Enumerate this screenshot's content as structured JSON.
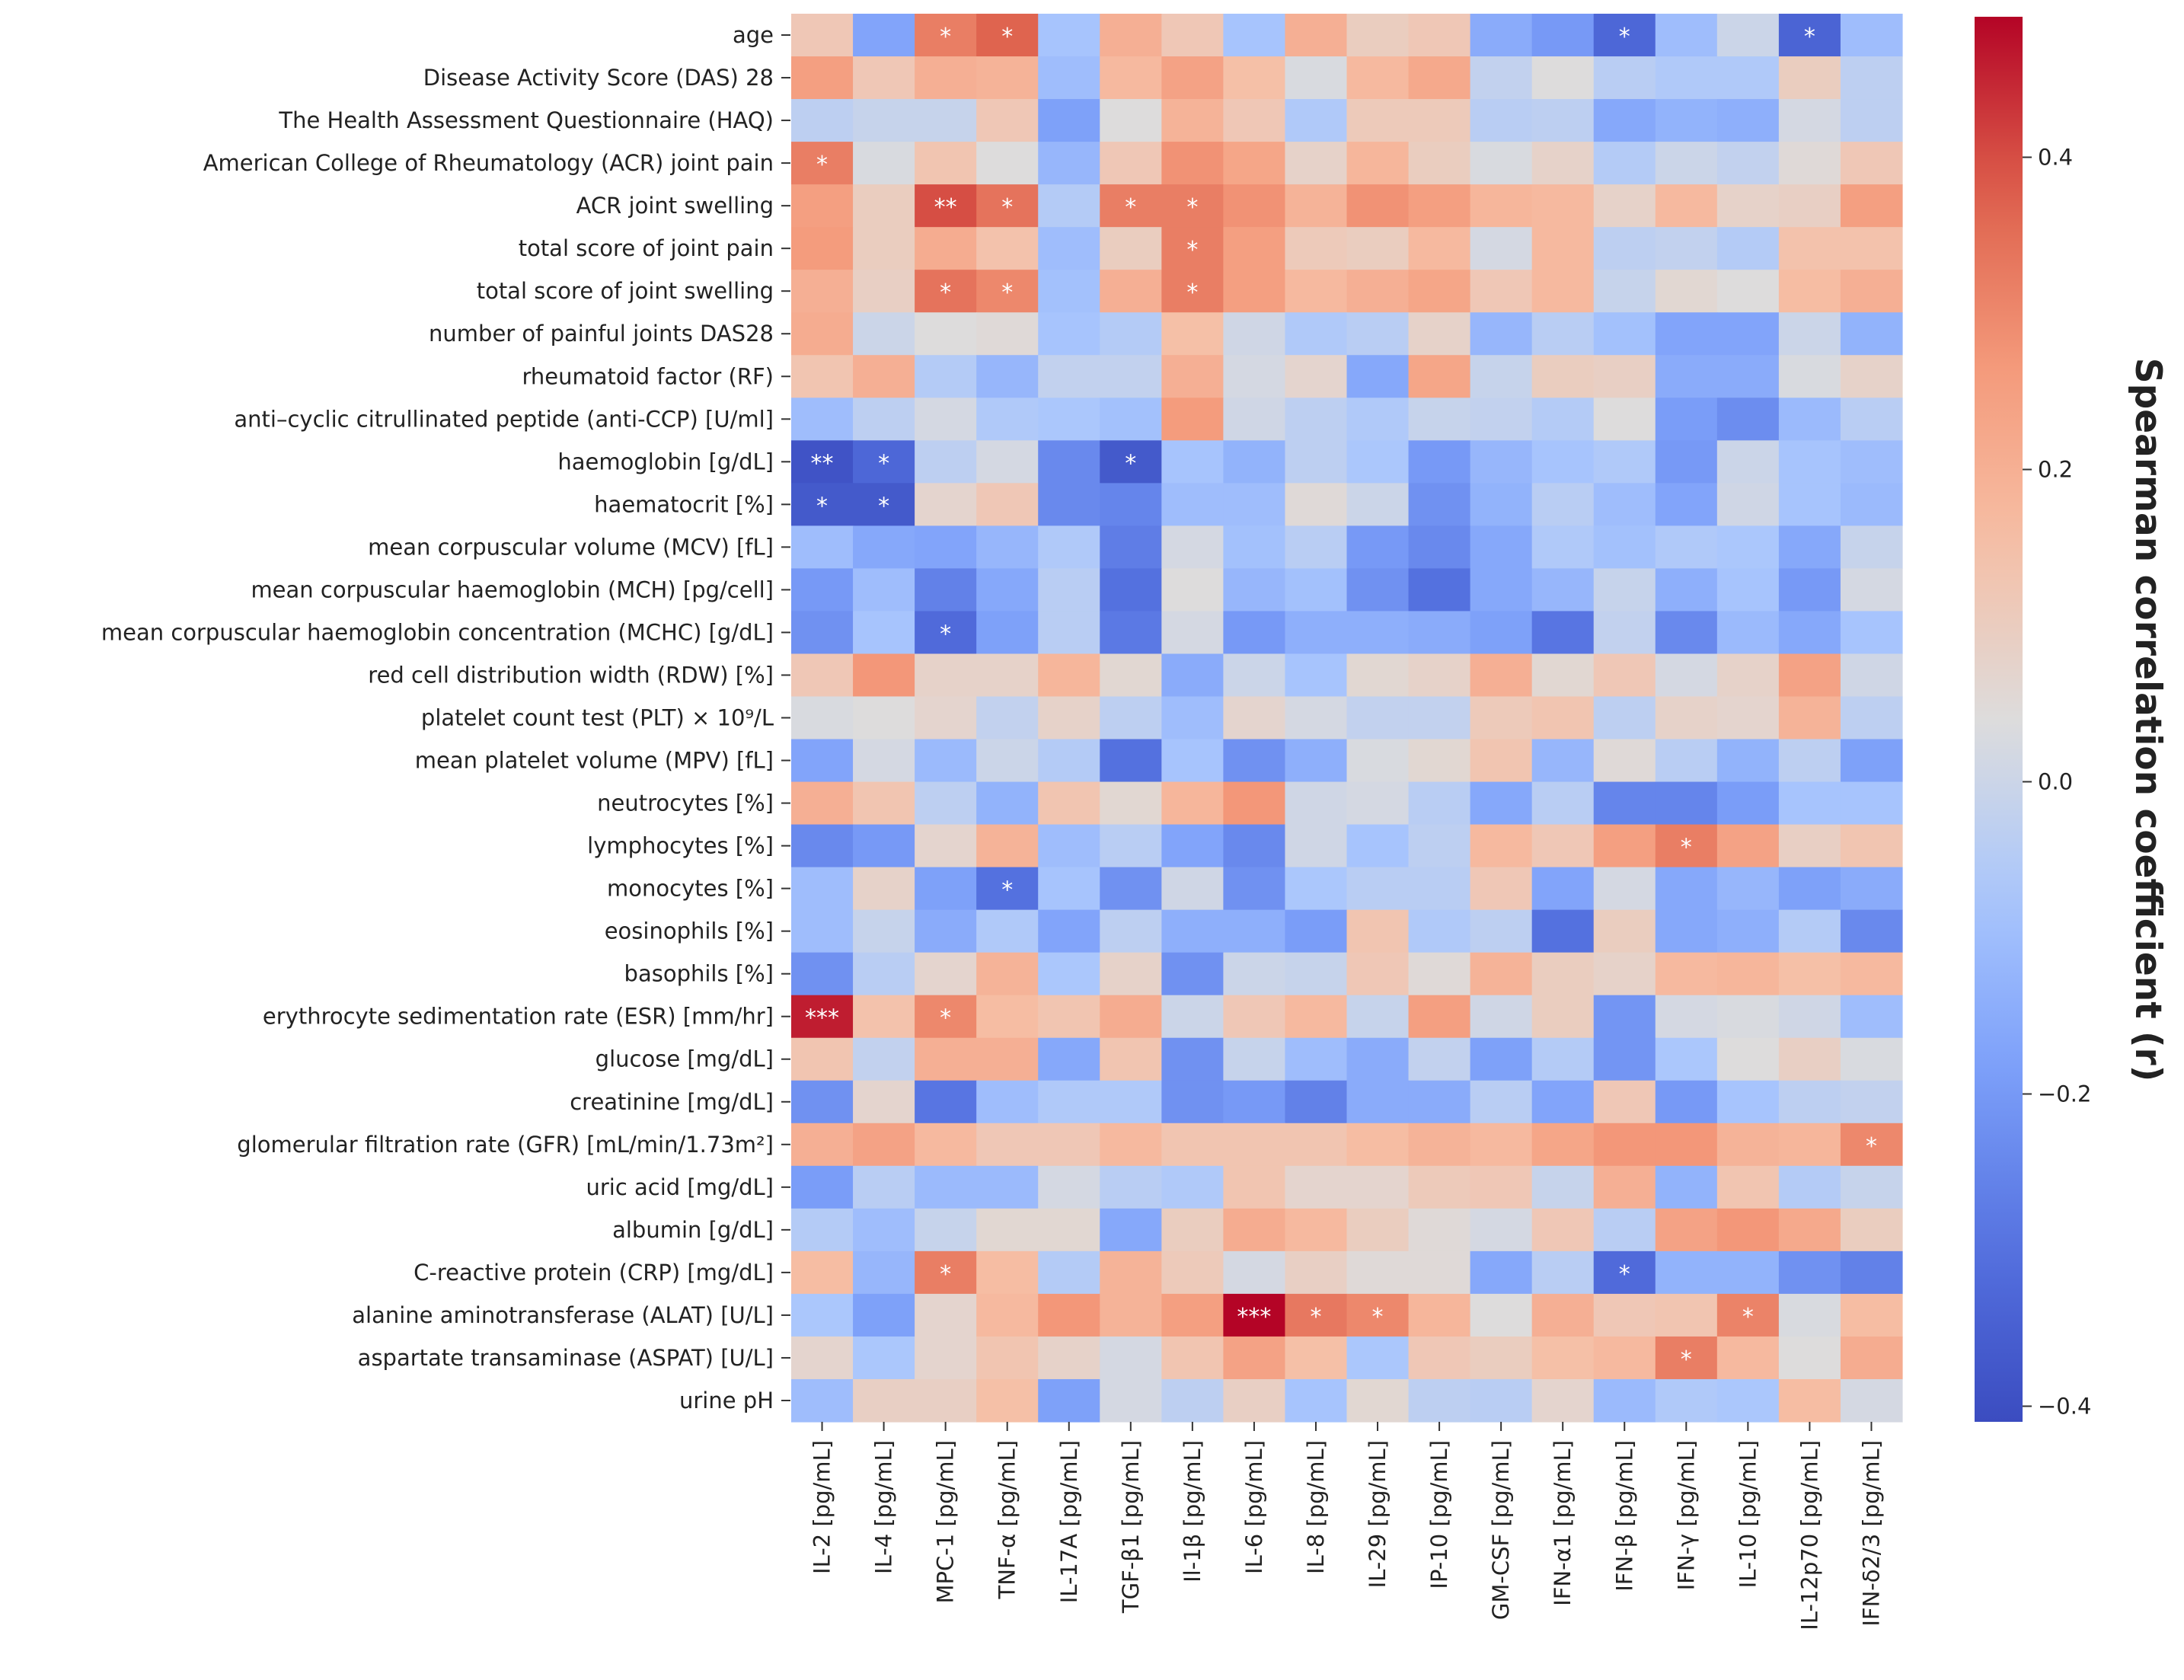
{
  "chart_data": {
    "type": "heatmap",
    "title": "",
    "colorbar_label": "Spearman correlation coefficient (r)",
    "colormap": "coolwarm",
    "vmin": -0.41,
    "vmax": 0.49,
    "colorbar_ticks": [
      {
        "value": 0.4,
        "label": "0.4"
      },
      {
        "value": 0.2,
        "label": "0.2"
      },
      {
        "value": 0.0,
        "label": "0.0"
      },
      {
        "value": -0.2,
        "label": "−0.2"
      },
      {
        "value": -0.4,
        "label": "−0.4"
      }
    ],
    "rows": [
      "age",
      "Disease Activity Score (DAS) 28",
      "The Health Assessment Questionnaire (HAQ)",
      "American College of Rheumatology (ACR) joint pain",
      "ACR joint swelling",
      "total score of  joint pain",
      "total score of joint swelling",
      "number of painful joints DAS28",
      "rheumatoid factor (RF)",
      "anti–cyclic citrullinated peptide (anti-CCP) [U/ml]",
      "haemoglobin [g/dL]",
      "haematocrit [%]",
      "mean corpuscular volume (MCV) [fL]",
      "mean corpuscular haemoglobin (MCH) [pg/cell]",
      "mean corpuscular haemoglobin concentration (MCHC) [g/dL]",
      "red cell distribution width (RDW) [%]",
      "platelet count test (PLT) × 10⁹/L",
      "mean platelet volume (MPV) [fL]",
      "neutrocytes [%]",
      "lymphocytes [%]",
      "monocytes [%]",
      "eosinophils [%]",
      "basophils [%]",
      "erythrocyte sedimentation rate (ESR) [mm/hr]",
      "glucose [mg/dL]",
      "creatinine [mg/dL]",
      "glomerular filtration rate (GFR) [mL/min/1.73m²]",
      "uric acid [mg/dL]",
      "albumin [g/dL]",
      "C-reactive protein (CRP) [mg/dL]",
      "alanine aminotransferase (ALAT)  [U/L]",
      "aspartate transaminase (ASPAT) [U/L]",
      "urine pH"
    ],
    "columns": [
      "IL-2 [pg/mL]",
      "IL-4 [pg/mL]",
      "MPC-1 [pg/mL]",
      "TNF-α [pg/mL]",
      "IL-17A [pg/mL]",
      "TGF-β1 [pg/mL]",
      "Il-1β [pg/mL]",
      "IL-6 [pg/mL]",
      "IL-8 [pg/mL]",
      "IL-29 [pg/mL]",
      "IP-10 [pg/mL]",
      "GM-CSF [pg/mL]",
      "IFN-α1 [pg/mL]",
      "IFN-β [pg/mL]",
      "IFN-γ [pg/mL]",
      "IL-10 [pg/mL]",
      "IL-12p70 [pg/mL]",
      "IFN-δ2/3 [pg/mL]"
    ],
    "values": [
      [
        0.12,
        -0.17,
        0.32,
        0.37,
        -0.08,
        0.2,
        0.12,
        -0.08,
        0.2,
        0.1,
        0.12,
        -0.15,
        -0.2,
        -0.33,
        -0.1,
        0.0,
        -0.34,
        -0.1
      ],
      [
        0.25,
        0.12,
        0.2,
        0.19,
        -0.1,
        0.17,
        0.24,
        0.15,
        0.03,
        0.17,
        0.22,
        -0.02,
        0.04,
        -0.04,
        -0.06,
        -0.06,
        0.1,
        -0.03
      ],
      [
        -0.03,
        -0.01,
        -0.01,
        0.12,
        -0.18,
        0.04,
        0.19,
        0.12,
        -0.06,
        0.11,
        0.11,
        -0.04,
        -0.03,
        -0.16,
        -0.13,
        -0.14,
        0.02,
        -0.03
      ],
      [
        0.32,
        0.03,
        0.13,
        0.04,
        -0.12,
        0.12,
        0.28,
        0.23,
        0.08,
        0.18,
        0.1,
        0.03,
        0.08,
        -0.05,
        0.0,
        -0.02,
        0.05,
        0.12
      ],
      [
        0.25,
        0.1,
        0.4,
        0.34,
        -0.05,
        0.32,
        0.32,
        0.28,
        0.19,
        0.28,
        0.25,
        0.18,
        0.17,
        0.08,
        0.17,
        0.08,
        0.09,
        0.25
      ],
      [
        0.26,
        0.1,
        0.21,
        0.14,
        -0.1,
        0.1,
        0.32,
        0.25,
        0.11,
        0.1,
        0.17,
        0.02,
        0.17,
        -0.03,
        -0.02,
        -0.05,
        0.14,
        0.14
      ],
      [
        0.2,
        0.09,
        0.34,
        0.3,
        -0.09,
        0.2,
        0.32,
        0.25,
        0.17,
        0.2,
        0.23,
        0.12,
        0.17,
        -0.01,
        0.06,
        0.04,
        0.16,
        0.2
      ],
      [
        0.21,
        0.0,
        0.04,
        0.05,
        -0.08,
        -0.05,
        0.15,
        0.01,
        -0.06,
        -0.04,
        0.08,
        -0.12,
        -0.04,
        -0.09,
        -0.17,
        -0.17,
        0.0,
        -0.13
      ],
      [
        0.13,
        0.2,
        -0.05,
        -0.12,
        -0.02,
        -0.02,
        0.2,
        0.02,
        0.07,
        -0.16,
        0.23,
        -0.01,
        0.1,
        0.09,
        -0.15,
        -0.15,
        0.03,
        0.08
      ],
      [
        -0.1,
        -0.03,
        0.02,
        -0.06,
        -0.07,
        -0.09,
        0.26,
        0.01,
        -0.03,
        -0.06,
        -0.01,
        -0.02,
        -0.05,
        0.04,
        -0.19,
        -0.23,
        -0.11,
        -0.04
      ],
      [
        -0.39,
        -0.33,
        -0.03,
        0.02,
        -0.24,
        -0.37,
        -0.08,
        -0.13,
        -0.03,
        -0.07,
        -0.2,
        -0.12,
        -0.08,
        -0.06,
        -0.2,
        0.0,
        -0.08,
        -0.1
      ],
      [
        -0.37,
        -0.37,
        0.07,
        0.12,
        -0.24,
        -0.25,
        -0.1,
        -0.1,
        0.05,
        0.0,
        -0.22,
        -0.13,
        -0.04,
        -0.1,
        -0.17,
        0.01,
        -0.08,
        -0.11
      ],
      [
        -0.1,
        -0.16,
        -0.17,
        -0.12,
        -0.06,
        -0.27,
        0.02,
        -0.09,
        -0.04,
        -0.2,
        -0.24,
        -0.16,
        -0.06,
        -0.09,
        -0.06,
        -0.07,
        -0.16,
        -0.01
      ],
      [
        -0.2,
        -0.1,
        -0.26,
        -0.16,
        -0.04,
        -0.3,
        0.04,
        -0.12,
        -0.09,
        -0.22,
        -0.3,
        -0.16,
        -0.12,
        -0.01,
        -0.14,
        -0.08,
        -0.2,
        0.02
      ],
      [
        -0.22,
        -0.08,
        -0.32,
        -0.18,
        -0.04,
        -0.28,
        0.02,
        -0.2,
        -0.14,
        -0.14,
        -0.15,
        -0.18,
        -0.29,
        -0.02,
        -0.24,
        -0.11,
        -0.16,
        -0.08
      ],
      [
        0.12,
        0.27,
        0.08,
        0.08,
        0.18,
        0.06,
        -0.15,
        0.0,
        -0.08,
        0.06,
        0.08,
        0.2,
        0.06,
        0.12,
        0.02,
        0.08,
        0.24,
        0.01
      ],
      [
        0.03,
        0.04,
        0.07,
        -0.02,
        0.08,
        -0.03,
        -0.1,
        0.07,
        0.02,
        -0.02,
        -0.02,
        0.11,
        0.13,
        -0.03,
        0.08,
        0.07,
        0.19,
        -0.03
      ],
      [
        -0.17,
        0.02,
        -0.11,
        0.0,
        -0.05,
        -0.3,
        -0.08,
        -0.22,
        -0.14,
        0.03,
        0.06,
        0.13,
        -0.12,
        0.05,
        -0.04,
        -0.13,
        -0.03,
        -0.18
      ],
      [
        0.2,
        0.13,
        -0.03,
        -0.13,
        0.13,
        0.06,
        0.18,
        0.27,
        0.01,
        0.02,
        -0.04,
        -0.16,
        -0.04,
        -0.25,
        -0.25,
        -0.19,
        -0.08,
        -0.08
      ],
      [
        -0.24,
        -0.2,
        0.07,
        0.19,
        -0.1,
        -0.04,
        -0.17,
        -0.24,
        0.01,
        -0.08,
        -0.03,
        0.17,
        0.12,
        0.25,
        0.32,
        0.24,
        0.09,
        0.13
      ],
      [
        -0.1,
        0.08,
        -0.18,
        -0.3,
        -0.08,
        -0.22,
        0.01,
        -0.22,
        -0.07,
        -0.04,
        -0.04,
        0.12,
        -0.17,
        0.02,
        -0.16,
        -0.12,
        -0.18,
        -0.15
      ],
      [
        -0.1,
        -0.01,
        -0.15,
        -0.06,
        -0.17,
        -0.03,
        -0.14,
        -0.14,
        -0.19,
        0.13,
        -0.06,
        -0.03,
        -0.3,
        0.1,
        -0.16,
        -0.14,
        -0.05,
        -0.24
      ],
      [
        -0.22,
        -0.04,
        0.07,
        0.19,
        -0.07,
        0.08,
        -0.22,
        0.0,
        -0.01,
        0.12,
        0.05,
        0.19,
        0.1,
        0.08,
        0.17,
        0.18,
        0.15,
        0.17
      ],
      [
        0.46,
        0.14,
        0.3,
        0.16,
        0.13,
        0.21,
        0.0,
        0.12,
        0.17,
        -0.01,
        0.25,
        0.01,
        0.1,
        -0.21,
        0.02,
        0.03,
        0.01,
        -0.1
      ],
      [
        0.13,
        -0.02,
        0.2,
        0.2,
        -0.16,
        0.13,
        -0.22,
        -0.01,
        -0.1,
        -0.15,
        -0.02,
        -0.18,
        -0.05,
        -0.21,
        -0.07,
        0.04,
        0.09,
        0.03
      ],
      [
        -0.22,
        0.07,
        -0.29,
        -0.1,
        -0.06,
        -0.06,
        -0.22,
        -0.2,
        -0.26,
        -0.15,
        -0.15,
        -0.04,
        -0.17,
        0.12,
        -0.2,
        -0.08,
        -0.03,
        -0.02
      ],
      [
        0.2,
        0.24,
        0.17,
        0.12,
        0.12,
        0.17,
        0.13,
        0.13,
        0.13,
        0.16,
        0.19,
        0.17,
        0.23,
        0.27,
        0.27,
        0.19,
        0.18,
        0.3
      ],
      [
        -0.19,
        -0.04,
        -0.11,
        -0.11,
        0.02,
        -0.04,
        -0.06,
        0.13,
        0.07,
        0.07,
        0.11,
        0.12,
        -0.01,
        0.2,
        -0.13,
        0.13,
        -0.05,
        -0.01
      ],
      [
        -0.05,
        -0.1,
        -0.01,
        0.06,
        0.06,
        -0.16,
        0.1,
        0.21,
        0.17,
        0.1,
        0.05,
        0.02,
        0.12,
        -0.04,
        0.24,
        0.27,
        0.22,
        0.1
      ],
      [
        0.16,
        -0.12,
        0.32,
        0.16,
        -0.05,
        0.19,
        0.11,
        0.02,
        0.09,
        0.05,
        0.05,
        -0.16,
        -0.04,
        -0.32,
        -0.13,
        -0.13,
        -0.22,
        -0.26
      ],
      [
        -0.07,
        -0.18,
        0.07,
        0.17,
        0.27,
        0.19,
        0.25,
        0.49,
        0.33,
        0.3,
        0.18,
        0.04,
        0.2,
        0.12,
        0.13,
        0.31,
        0.03,
        0.16
      ],
      [
        0.07,
        -0.07,
        0.07,
        0.13,
        0.08,
        0.02,
        0.13,
        0.24,
        0.15,
        -0.07,
        0.12,
        0.1,
        0.15,
        0.17,
        0.32,
        0.17,
        0.04,
        0.21
      ],
      [
        -0.1,
        0.09,
        0.09,
        0.15,
        -0.18,
        0.02,
        -0.03,
        0.09,
        -0.08,
        0.06,
        -0.03,
        -0.04,
        0.07,
        -0.11,
        -0.06,
        -0.07,
        0.16,
        0.02
      ]
    ],
    "annotations": [
      {
        "row": 0,
        "col": 2,
        "label": "*"
      },
      {
        "row": 0,
        "col": 3,
        "label": "*"
      },
      {
        "row": 0,
        "col": 13,
        "label": "*"
      },
      {
        "row": 0,
        "col": 16,
        "label": "*"
      },
      {
        "row": 3,
        "col": 0,
        "label": "*"
      },
      {
        "row": 4,
        "col": 2,
        "label": "**"
      },
      {
        "row": 4,
        "col": 3,
        "label": "*"
      },
      {
        "row": 4,
        "col": 5,
        "label": "*"
      },
      {
        "row": 4,
        "col": 6,
        "label": "*"
      },
      {
        "row": 5,
        "col": 6,
        "label": "*"
      },
      {
        "row": 6,
        "col": 2,
        "label": "*"
      },
      {
        "row": 6,
        "col": 3,
        "label": "*"
      },
      {
        "row": 6,
        "col": 6,
        "label": "*"
      },
      {
        "row": 10,
        "col": 0,
        "label": "**"
      },
      {
        "row": 10,
        "col": 1,
        "label": "*"
      },
      {
        "row": 10,
        "col": 5,
        "label": "*"
      },
      {
        "row": 11,
        "col": 0,
        "label": "*"
      },
      {
        "row": 11,
        "col": 1,
        "label": "*"
      },
      {
        "row": 14,
        "col": 2,
        "label": "*"
      },
      {
        "row": 19,
        "col": 14,
        "label": "*"
      },
      {
        "row": 20,
        "col": 3,
        "label": "*"
      },
      {
        "row": 23,
        "col": 0,
        "label": "***"
      },
      {
        "row": 23,
        "col": 2,
        "label": "*"
      },
      {
        "row": 26,
        "col": 17,
        "label": "*"
      },
      {
        "row": 29,
        "col": 2,
        "label": "*"
      },
      {
        "row": 29,
        "col": 13,
        "label": "*"
      },
      {
        "row": 30,
        "col": 7,
        "label": "***"
      },
      {
        "row": 30,
        "col": 8,
        "label": "*"
      },
      {
        "row": 30,
        "col": 9,
        "label": "*"
      },
      {
        "row": 30,
        "col": 15,
        "label": "*"
      },
      {
        "row": 31,
        "col": 14,
        "label": "*"
      }
    ]
  }
}
